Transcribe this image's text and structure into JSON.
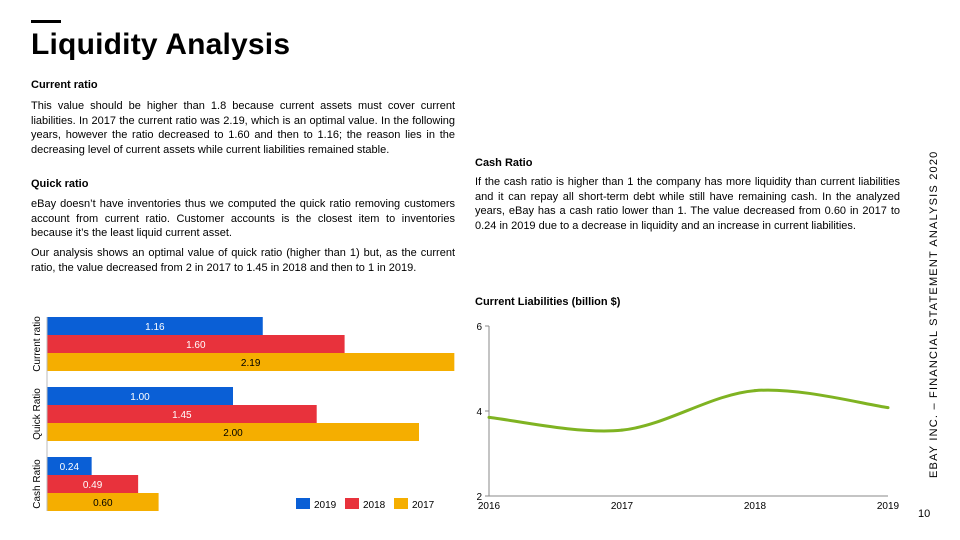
{
  "title": "Liquidity Analysis",
  "current_ratio": {
    "heading": "Current ratio",
    "body": "This value should be higher than 1.8 because current assets must cover current liabilities. In 2017 the current ratio was 2.19, which is an optimal value. In the following years, however the ratio decreased to 1.60 and then to 1.16; the reason lies in the decreasing level of current assets while current liabilities remained stable."
  },
  "quick_ratio": {
    "heading": "Quick ratio",
    "body1": "eBay doesn’t have inventories thus we computed the quick ratio removing customers account from current ratio. Customer accounts is the closest item to inventories because it’s the least liquid current asset.",
    "body2": "Our analysis shows an optimal value of quick ratio (higher than 1) but, as the current ratio, the value decreased from 2 in 2017 to 1.45 in 2018 and then to 1 in 2019."
  },
  "cash_ratio": {
    "heading": "Cash Ratio",
    "body": "If the cash ratio is higher than 1 the company has more liquidity than current liabilities and it can repay all short-term debt while still have remaining cash. In the analyzed years, eBay has a cash ratio lower than 1. The value decreased from 0.60 in 2017 to 0.24 in 2019 due to a decrease in liquidity and an increase in current liabilities."
  },
  "side_label": "EBAY INC. – FINANCIAL STATEMENT ANALYSIS 2020",
  "page_number": "10",
  "chart_data": [
    {
      "type": "bar",
      "orientation": "horizontal",
      "categories": [
        "Current ratio",
        "Quick Ratio",
        "Cash Ratio"
      ],
      "series": [
        {
          "name": "2019",
          "color": "#0a5fd6",
          "values": [
            1.16,
            1.0,
            0.24
          ],
          "labels": [
            "1.16",
            "1.00",
            "0.24"
          ]
        },
        {
          "name": "2018",
          "color": "#e8323c",
          "values": [
            1.6,
            1.45,
            0.49
          ],
          "labels": [
            "1.60",
            "1.45",
            "0.49"
          ]
        },
        {
          "name": "2017",
          "color": "#f5ae00",
          "values": [
            2.19,
            2.0,
            0.6
          ],
          "labels": [
            "2.19",
            "2.00",
            "0.60"
          ]
        }
      ],
      "legend": "bottom-right"
    },
    {
      "type": "line",
      "title": "Current Liabilities (billion $)",
      "x": [
        "2016",
        "2017",
        "2018",
        "2019"
      ],
      "series": [
        {
          "color": "#7fb322",
          "values": [
            3.85,
            3.55,
            4.48,
            4.08
          ]
        }
      ],
      "yticks": [
        "2",
        "4",
        "6"
      ],
      "ylim": [
        2,
        6
      ]
    }
  ]
}
